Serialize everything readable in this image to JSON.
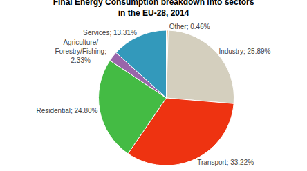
{
  "chart_data": {
    "type": "pie",
    "title": "Final Energy Consumption breakdown into sectors\nin the EU-28, 2014",
    "values": [
      0.46,
      25.89,
      33.22,
      24.8,
      2.33,
      13.31
    ],
    "value_labels": [
      "Other; 0.46%",
      "Industry; 25.89%",
      "Transport; 33.22%",
      "Residential; 24.80%",
      "Agriculture/\nForestry/Fishing;\n2.33%",
      "Services; 13.31%"
    ],
    "colors": [
      "#E8A060",
      "#D4CFBE",
      "#EE3311",
      "#44BB44",
      "#9966AA",
      "#3399BB"
    ],
    "data_labels": true
  }
}
